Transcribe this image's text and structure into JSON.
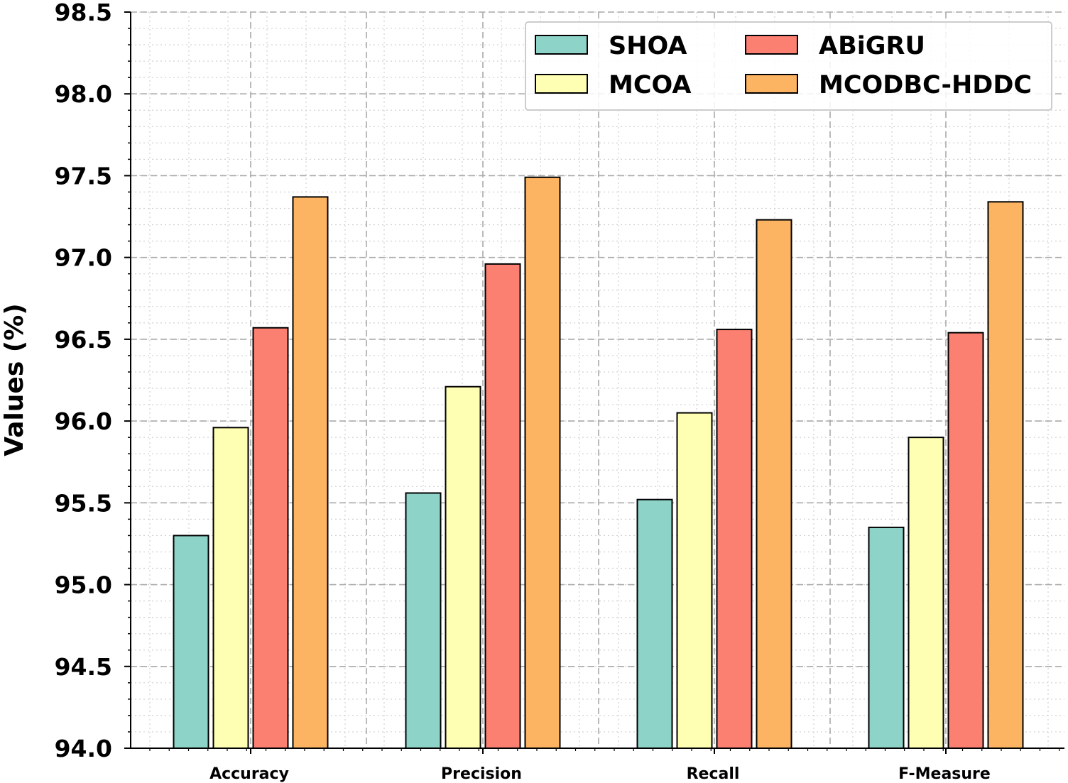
{
  "chart_data": {
    "type": "bar",
    "categories": [
      "Accuracy",
      "Precision",
      "Recall",
      "F-Measure"
    ],
    "series": [
      {
        "name": "SHOA",
        "color": "#8dd3c7",
        "values": [
          95.3,
          95.56,
          95.52,
          95.35
        ]
      },
      {
        "name": "MCOA",
        "color": "#ffffb3",
        "values": [
          95.96,
          96.21,
          96.05,
          95.9
        ]
      },
      {
        "name": "ABiGRU",
        "color": "#fb8072",
        "values": [
          96.57,
          96.96,
          96.56,
          96.54
        ]
      },
      {
        "name": "MCODBC-HDDC",
        "color": "#fdb462",
        "values": [
          97.37,
          97.49,
          97.23,
          97.34
        ]
      }
    ],
    "ylabel": "Values (%)",
    "ylim": [
      94.0,
      98.5
    ],
    "yticks": [
      "94.0",
      "94.5",
      "95.0",
      "95.5",
      "96.0",
      "96.5",
      "97.0",
      "97.5",
      "98.0",
      "98.5"
    ],
    "grid": true,
    "legend": {
      "placement": "top-right",
      "columns": 2
    }
  }
}
